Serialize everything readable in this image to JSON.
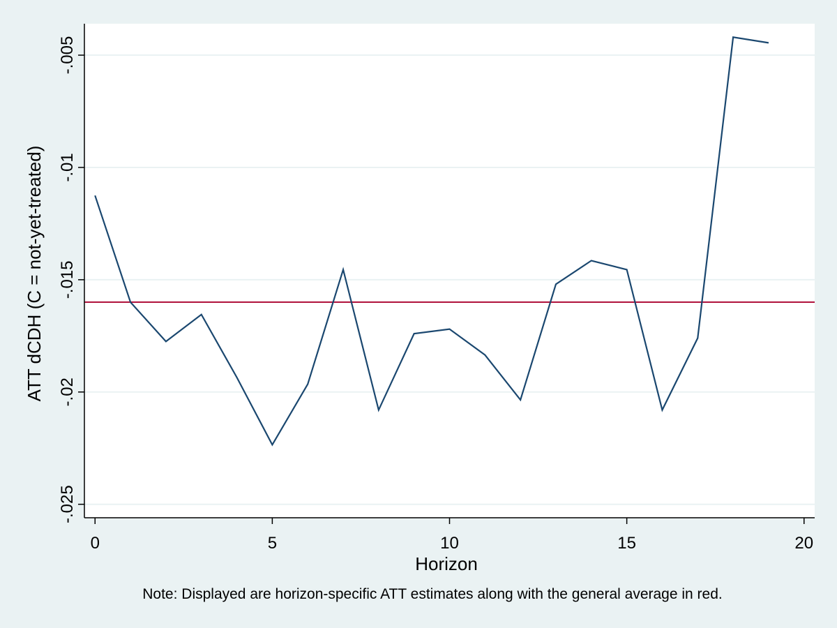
{
  "chart_data": {
    "type": "line",
    "title": "",
    "xlabel": "Horizon",
    "ylabel": "ATT dCDH (C = not-yet-treated)",
    "note": "Note: Displayed are horizon-specific ATT estimates along with the general average in red.",
    "xlim": [
      -0.3,
      20.3
    ],
    "ylim": [
      -0.0256,
      -0.0036
    ],
    "x_ticks": [
      0,
      5,
      10,
      15,
      20
    ],
    "x_tick_labels": [
      "0",
      "5",
      "10",
      "15",
      "20"
    ],
    "y_ticks": [
      -0.005,
      -0.01,
      -0.015,
      -0.02,
      -0.025
    ],
    "y_tick_labels": [
      "-.005",
      "-.01",
      "-.015",
      "-.02",
      "-.025"
    ],
    "grid": true,
    "legend": "none",
    "series": [
      {
        "color": "#1a476f",
        "x": [
          0,
          1,
          2,
          3,
          4,
          5,
          6,
          7,
          8,
          9,
          10,
          11,
          12,
          13,
          14,
          15,
          16,
          17,
          18,
          19
        ],
        "values": [
          -0.01125,
          -0.016,
          -0.01775,
          -0.01655,
          -0.01935,
          -0.02235,
          -0.01965,
          -0.01455,
          -0.0208,
          -0.0174,
          -0.0172,
          -0.01835,
          -0.02035,
          -0.0152,
          -0.01415,
          -0.01455,
          -0.0208,
          -0.0176,
          -0.0042,
          -0.00445
        ]
      }
    ],
    "reference_line": {
      "color": "#b0123c",
      "value": -0.016
    }
  }
}
